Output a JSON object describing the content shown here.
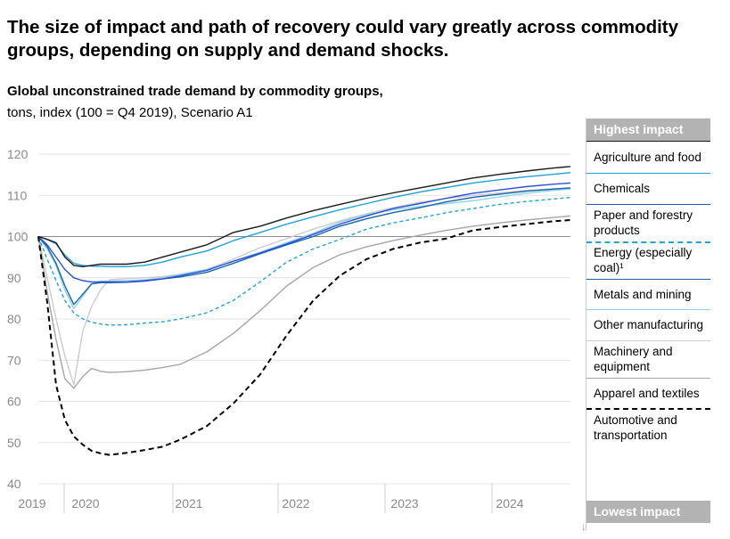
{
  "headline": "The size of impact and path of recovery could vary greatly across commodity groups, depending on supply and demand shocks.",
  "subtitle": "Global unconstrained trade demand by commodity groups,",
  "subtitle2": "tons, index (100 = Q4 2019), Scenario A1",
  "legend": {
    "top_label": "Highest impact",
    "bottom_label": "Lowest impact",
    "items": [
      {
        "label": "Agriculture and food",
        "color": "#1a1a1a",
        "dash": "solid"
      },
      {
        "label": "Chemicals",
        "color": "#1fa3d8",
        "dash": "solid"
      },
      {
        "label": "Paper and forestry products",
        "color": "#2e4fd6",
        "dash": "solid"
      },
      {
        "label": "Energy (especially coal)¹",
        "color": "#1fa3d8",
        "dash": "dashed"
      },
      {
        "label": "Metals and mining",
        "color": "#1766a8",
        "dash": "solid"
      },
      {
        "label": "Other manufacturing",
        "color": "#8fd3ee",
        "dash": "solid"
      },
      {
        "label": "Machinery and equipment",
        "color": "#cccccc",
        "dash": "solid"
      },
      {
        "label": "Apparel and textiles",
        "color": "#a6a6a6",
        "dash": "solid"
      },
      {
        "label": "Automotive and transportation",
        "color": "#000000",
        "dash": "dashed"
      }
    ]
  },
  "chart_data": {
    "type": "line",
    "title": "Global unconstrained trade demand by commodity groups,",
    "ylabel": "tons, index (100 = Q4 2019), Scenario A1",
    "x_ticks": [
      "2019",
      "2020",
      "2021",
      "2022",
      "2023",
      "2024"
    ],
    "y_ticks": [
      40,
      50,
      60,
      70,
      80,
      90,
      100,
      110,
      120
    ],
    "ylim": [
      40,
      120
    ],
    "x": [
      "Q4 2019",
      "Jan 2020",
      "Feb 2020",
      "Mar 2020",
      "Apr 2020",
      "May 2020",
      "Jun 2020",
      "Jul 2020",
      "Aug 2020",
      "Oct 2020",
      "Dec 2020",
      "Feb 2021",
      "Apr 2021",
      "Jul 2021",
      "Oct 2021",
      "Jan 2022",
      "Apr 2022",
      "Jul 2022",
      "Oct 2022",
      "Jan 2023",
      "Apr 2023",
      "Jul 2023",
      "Oct 2023",
      "Jan 2024",
      "Apr 2024",
      "Jul 2024",
      "Oct 2024",
      "Dec 2024"
    ],
    "series": [
      {
        "name": "Agriculture and food",
        "values": [
          100,
          99.3,
          98.5,
          95,
          93,
          92.7,
          93,
          93.3,
          93.3,
          93.3,
          93.8,
          95,
          96.2,
          98,
          101,
          102.5,
          104.5,
          106.3,
          107.8,
          109.3,
          110.6,
          111.8,
          113,
          114.2,
          115.1,
          115.9,
          116.6,
          117
        ]
      },
      {
        "name": "Chemicals",
        "values": [
          100,
          99.3,
          98.2,
          95.5,
          93.5,
          93,
          92.8,
          92.8,
          92.7,
          92.7,
          93,
          93.8,
          95,
          96.5,
          99,
          101,
          103,
          104.8,
          106.5,
          108,
          109.5,
          110.8,
          111.9,
          113,
          113.8,
          114.5,
          115.1,
          115.5
        ]
      },
      {
        "name": "Paper and forestry products",
        "values": [
          100,
          98,
          95,
          92,
          90,
          89.3,
          89,
          89,
          89,
          89,
          89.3,
          89.7,
          90.5,
          91.8,
          94,
          96,
          98.2,
          100.5,
          103,
          105,
          106.8,
          108,
          109.3,
          110.5,
          111.3,
          112.1,
          112.7,
          113
        ]
      },
      {
        "name": "Energy (especially coal)¹",
        "values": [
          100,
          94.5,
          89.3,
          84.5,
          81.5,
          80,
          79.2,
          78.8,
          78.5,
          78.6,
          79,
          79.3,
          80,
          81.5,
          84.5,
          89,
          93.8,
          97,
          99.3,
          101.8,
          103.3,
          104.5,
          105.8,
          106.8,
          107.8,
          108.5,
          109.1,
          109.5
        ]
      },
      {
        "name": "Metals and mining",
        "values": [
          100,
          97.5,
          93.5,
          88,
          83.5,
          86,
          88.5,
          88.8,
          88.8,
          88.9,
          89.2,
          89.7,
          90.2,
          91.3,
          93.5,
          95.8,
          98,
          100,
          102.5,
          104.3,
          105.8,
          107,
          108.4,
          109.5,
          110.3,
          111,
          111.5,
          111.8
        ]
      },
      {
        "name": "Other manufacturing",
        "values": [
          100,
          97,
          93,
          87,
          82.5,
          85.5,
          88.5,
          89.2,
          89.2,
          89.3,
          89.5,
          90,
          90.8,
          92,
          94,
          96.2,
          98.5,
          100.8,
          103.5,
          105.3,
          106.5,
          107.3,
          108,
          108.7,
          109.6,
          110.5,
          111.2,
          111.5
        ]
      },
      {
        "name": "Machinery and equipment",
        "values": [
          100,
          90,
          80,
          71,
          64,
          77,
          83,
          87,
          89.5,
          89.8,
          90,
          90.3,
          90.8,
          92,
          94.5,
          97.3,
          99.5,
          101.8,
          103.8,
          105.5,
          107,
          108.3,
          109.2,
          110,
          110.6,
          111.2,
          111.6,
          111.8
        ]
      },
      {
        "name": "Apparel and textiles",
        "values": [
          100,
          86.5,
          75,
          65.5,
          63.2,
          66,
          68,
          67.3,
          67,
          67.2,
          67.6,
          68.2,
          69,
          72,
          76.5,
          82,
          88,
          92.5,
          95.6,
          97.5,
          99,
          100.3,
          101.5,
          102.5,
          103.3,
          104,
          104.6,
          105
        ]
      },
      {
        "name": "Automotive and transportation",
        "values": [
          100,
          84,
          64,
          55.5,
          51.5,
          49.5,
          48,
          47.4,
          47,
          47.5,
          48.2,
          49,
          50.7,
          54,
          59.5,
          66.5,
          76,
          84.5,
          90.5,
          94.5,
          97,
          98.5,
          99.5,
          101.5,
          102.3,
          103,
          103.7,
          104
        ]
      }
    ]
  }
}
